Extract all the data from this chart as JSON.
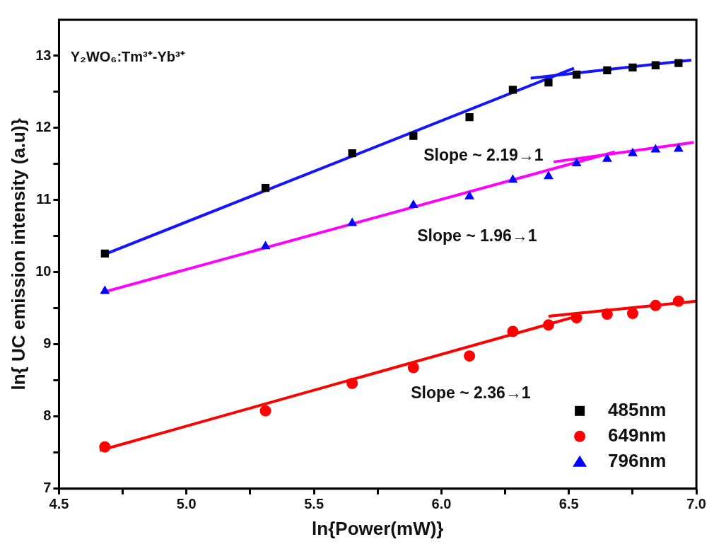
{
  "chart_data": {
    "type": "scatter",
    "xlabel": "ln{Power(mW)}",
    "ylabel": "ln{ UC emission intensity (a.u)}",
    "x": [
      4.68,
      5.31,
      5.65,
      5.89,
      6.11,
      6.28,
      6.42,
      6.53,
      6.65,
      6.75,
      6.84,
      6.93
    ],
    "series": [
      {
        "name": "485nm",
        "color": "#000000",
        "marker": "square",
        "values": [
          10.26,
          11.17,
          11.65,
          11.89,
          12.15,
          12.53,
          12.63,
          12.74,
          12.8,
          12.84,
          12.87,
          12.9
        ]
      },
      {
        "name": "649nm",
        "color": "#ff0000",
        "marker": "circle",
        "values": [
          7.58,
          8.08,
          8.46,
          8.68,
          8.84,
          9.18,
          9.27,
          9.37,
          9.42,
          9.43,
          9.54,
          9.6
        ]
      },
      {
        "name": "796nm",
        "color": "#0000ff",
        "marker": "triangle",
        "values": [
          9.74,
          10.36,
          10.68,
          10.93,
          11.05,
          11.28,
          11.33,
          11.51,
          11.57,
          11.65,
          11.7,
          11.71
        ]
      },
      {
        "type": "line",
        "color": "#1414ff",
        "marker": "none",
        "x": [
          4.68,
          6.52
        ],
        "values": [
          10.25,
          12.83
        ]
      },
      {
        "type": "line",
        "color": "#1414ff",
        "marker": "none",
        "x": [
          6.35,
          6.98
        ],
        "values": [
          12.69,
          12.94
        ]
      },
      {
        "type": "line",
        "color": "#ff00ff",
        "marker": "none",
        "x": [
          4.68,
          6.68
        ],
        "values": [
          9.73,
          11.67
        ]
      },
      {
        "type": "line",
        "color": "#ff00ff",
        "marker": "none",
        "x": [
          6.44,
          6.99
        ],
        "values": [
          11.53,
          11.8
        ]
      },
      {
        "type": "line",
        "color": "#ff0000",
        "marker": "none",
        "x": [
          4.66,
          6.53
        ],
        "values": [
          7.53,
          9.39
        ]
      },
      {
        "type": "line",
        "color": "#ff0000",
        "marker": "none",
        "x": [
          6.42,
          7.0
        ],
        "values": [
          9.39,
          9.6
        ]
      }
    ],
    "annotations": [
      "Y₂WO₆:Tm³⁺-Yb³⁺",
      "Slope ~ 2.19→1",
      "Slope ~ 1.96→1",
      "Slope ~ 2.36→1"
    ],
    "xlim": [
      4.5,
      7.0
    ],
    "xticks": [
      {
        "value": 4.5,
        "label": "4.5"
      },
      {
        "value": 4.75,
        "label": null
      },
      {
        "value": 5.0,
        "label": "5.0"
      },
      {
        "value": 5.25,
        "label": null
      },
      {
        "value": 5.5,
        "label": "5.5"
      },
      {
        "value": 5.75,
        "label": null
      },
      {
        "value": 6.0,
        "label": "6.0"
      },
      {
        "value": 6.25,
        "label": null
      },
      {
        "value": 6.5,
        "label": "6.5"
      },
      {
        "value": 6.75,
        "label": null
      },
      {
        "value": 7.0,
        "label": "7.0"
      }
    ],
    "ylim": [
      7,
      13.5
    ],
    "yticks": [
      7,
      {
        "value": 7.5,
        "label": null
      },
      8,
      {
        "value": 8.5,
        "label": null
      },
      9,
      {
        "value": 9.5,
        "label": null
      },
      10,
      {
        "value": 10.5,
        "label": null
      },
      11,
      {
        "value": 11.5,
        "label": null
      },
      12,
      {
        "value": 12.5,
        "label": null
      },
      13
    ],
    "grid": false,
    "legend": "bottom right"
  }
}
